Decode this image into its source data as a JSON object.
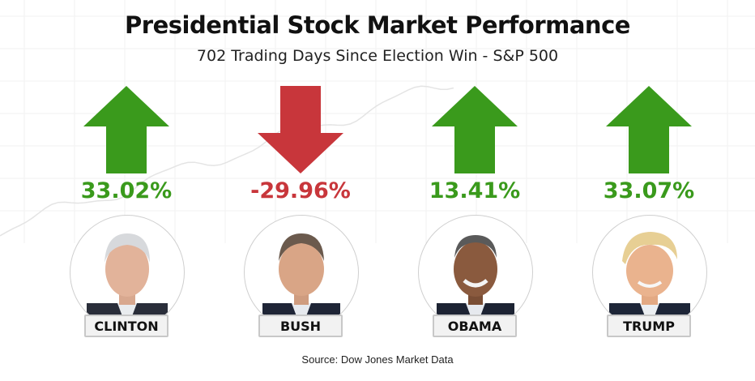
{
  "chart_data": {
    "type": "bar",
    "title": "Presidential Stock Market Performance",
    "subtitle": "702 Trading Days Since Election Win - S&P 500",
    "categories": [
      "CLINTON",
      "BUSH",
      "OBAMA",
      "TRUMP"
    ],
    "values": [
      33.02,
      -29.96,
      13.41,
      33.07
    ],
    "value_labels": [
      "33.02%",
      "-29.96%",
      "13.41%",
      "33.07%"
    ],
    "directions": [
      "up",
      "down",
      "up",
      "up"
    ],
    "colors": {
      "up": "#3a9a1c",
      "down": "#c8363b"
    },
    "source": "Source: Dow Jones Market Data"
  }
}
